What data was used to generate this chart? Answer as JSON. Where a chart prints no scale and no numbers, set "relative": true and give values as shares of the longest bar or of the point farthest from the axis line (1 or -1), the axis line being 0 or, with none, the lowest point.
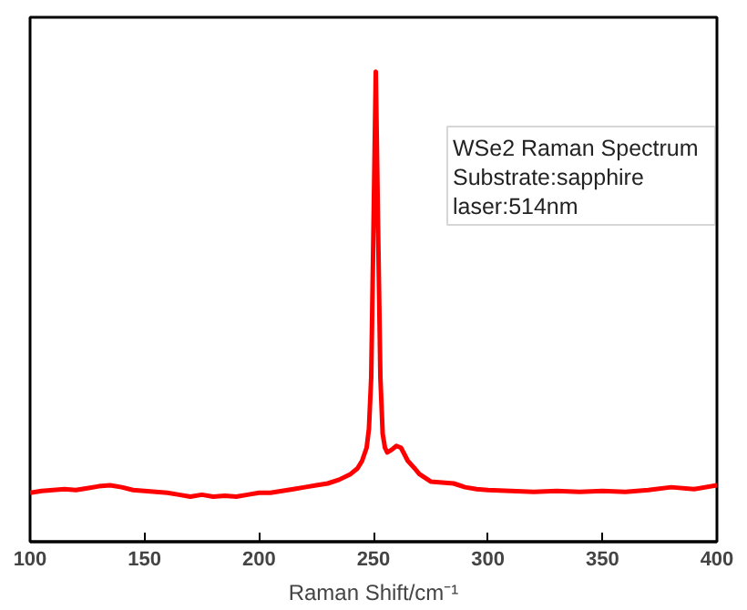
{
  "chart_data": {
    "type": "line",
    "relative": true,
    "xlabel": "Raman Shift/cm⁻¹",
    "x": [
      100,
      105,
      110,
      115,
      120,
      125,
      130,
      135,
      140,
      145,
      150,
      155,
      160,
      165,
      170,
      175,
      180,
      185,
      190,
      195,
      200,
      205,
      210,
      215,
      220,
      225,
      230,
      235,
      240,
      243,
      245,
      247,
      248,
      249,
      250,
      251,
      252,
      253,
      254,
      255,
      256,
      258,
      260,
      262,
      265,
      268,
      270,
      275,
      280,
      285,
      290,
      295,
      300,
      310,
      320,
      330,
      340,
      350,
      360,
      370,
      380,
      390,
      400
    ],
    "series": [
      {
        "color": "#ff0000",
        "values": [
          0.104,
          0.108,
          0.11,
          0.112,
          0.11,
          0.114,
          0.118,
          0.12,
          0.116,
          0.11,
          0.108,
          0.106,
          0.104,
          0.1,
          0.096,
          0.1,
          0.096,
          0.098,
          0.096,
          0.1,
          0.104,
          0.104,
          0.108,
          0.112,
          0.116,
          0.12,
          0.124,
          0.132,
          0.144,
          0.156,
          0.172,
          0.2,
          0.24,
          0.35,
          0.67,
          1.0,
          0.67,
          0.35,
          0.23,
          0.2,
          0.19,
          0.196,
          0.204,
          0.2,
          0.172,
          0.156,
          0.144,
          0.128,
          0.126,
          0.124,
          0.116,
          0.112,
          0.11,
          0.108,
          0.106,
          0.108,
          0.106,
          0.108,
          0.106,
          0.11,
          0.116,
          0.112,
          0.12
        ]
      }
    ],
    "xlim": [
      100,
      400
    ],
    "xticks": [
      100,
      150,
      200,
      250,
      300,
      350,
      400
    ],
    "line_style": "solid",
    "annotations": [
      "WSe2 Raman Spectrum",
      "Substrate:sapphire",
      "laser:514nm"
    ]
  }
}
